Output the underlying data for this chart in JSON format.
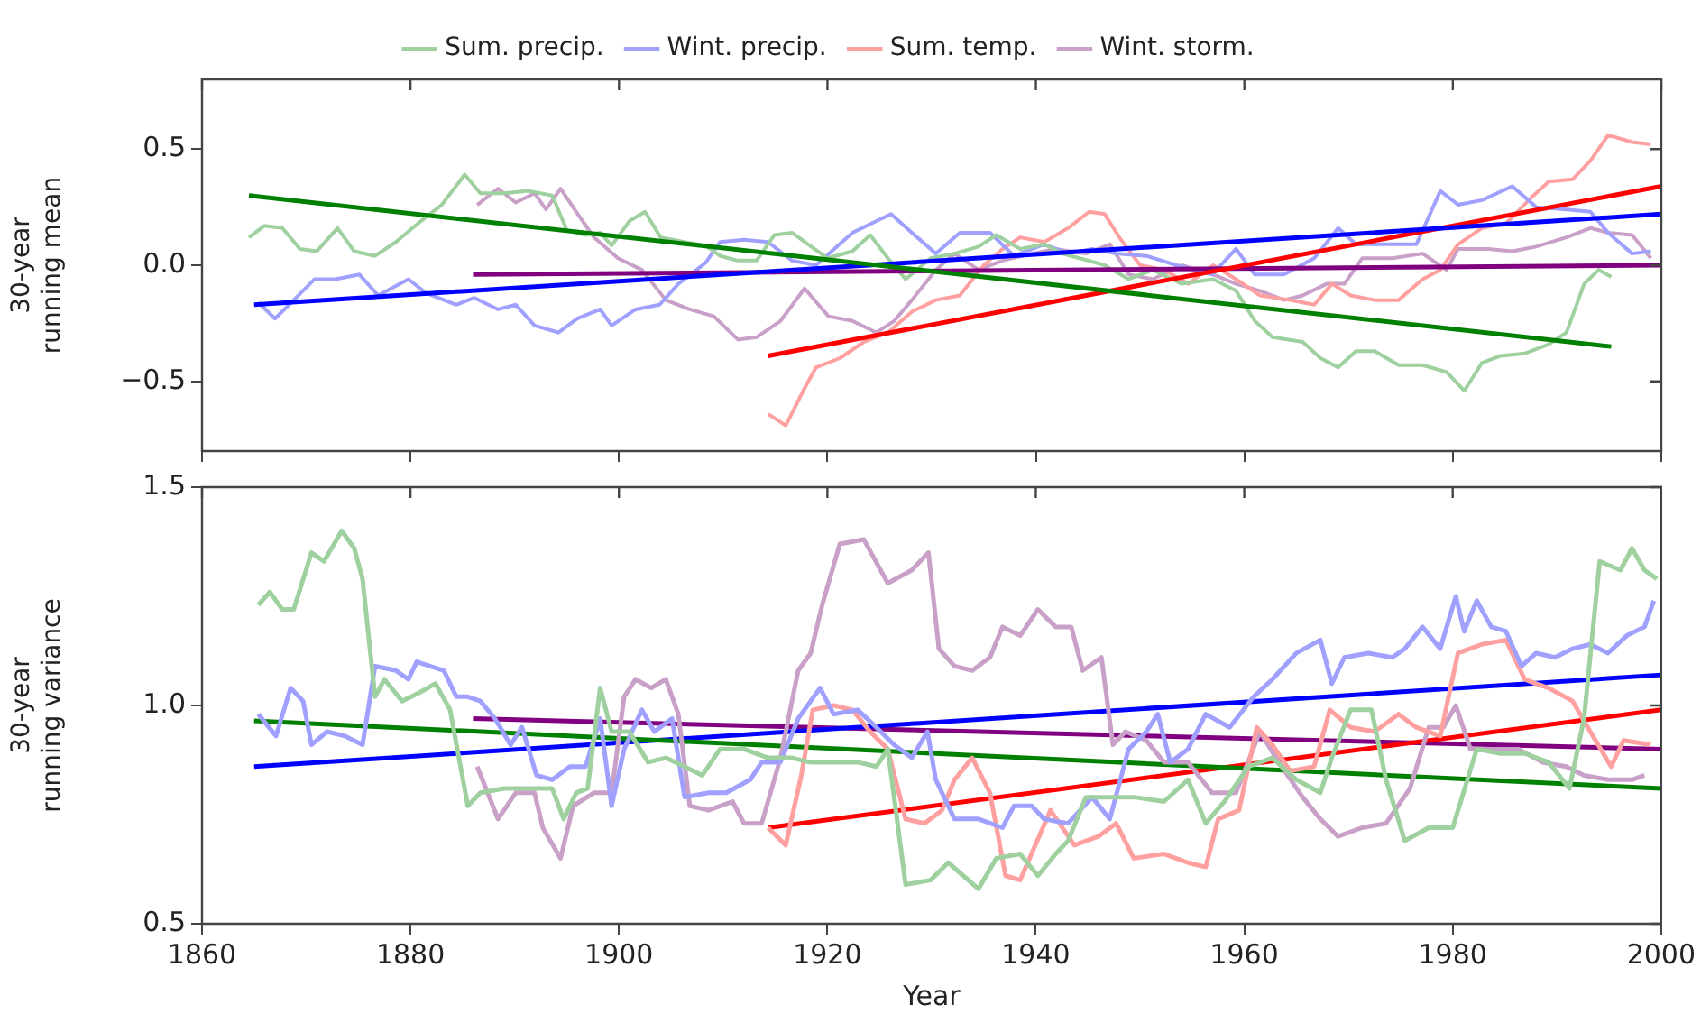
{
  "chart_data": [
    {
      "type": "line",
      "ylabel": "30-year\nrunning mean",
      "xlim": [
        1860,
        2000
      ],
      "xticks": [
        1860,
        1880,
        1900,
        1920,
        1940,
        1960,
        1980,
        2000
      ],
      "ylim": [
        -0.8,
        0.8
      ],
      "yticks": [
        {
          "value": -0.5,
          "label": "−0.5"
        },
        {
          "value": 0,
          "label": "0.0"
        },
        {
          "value": 0.5,
          "label": "0.5"
        }
      ],
      "tick_labels": "y",
      "legend": "top",
      "marker": "none",
      "series": [
        {
          "name": "Sum. precip.",
          "color": "#9fd09f",
          "x": [
            1864.5,
            1866,
            1867.7,
            1869.4,
            1871,
            1873,
            1874.6,
            1876.6,
            1878.6,
            1881,
            1883,
            1885.2,
            1886.7,
            1889,
            1891.3,
            1893.6,
            1895,
            1896.8,
            1898.2,
            1899.3,
            1901,
            1902.5,
            1904,
            1906.3,
            1908.3,
            1909.7,
            1911.4,
            1913.2,
            1914.9,
            1916.6,
            1920,
            1922.4,
            1924.1,
            1925.8,
            1927.5,
            1929.9,
            1932.2,
            1934.5,
            1936.2,
            1938.5,
            1940.8,
            1942.5,
            1944.2,
            1946.6,
            1948.9,
            1951.2,
            1954,
            1957,
            1959.2,
            1961,
            1962.7,
            1965.6,
            1967.3,
            1969,
            1970.7,
            1972.5,
            1974.8,
            1977.1,
            1979.4,
            1981.1,
            1982.8,
            1984.6,
            1986.9,
            1989.2,
            1990.9,
            1992.6,
            1994,
            1995.2
          ],
          "values": [
            0.12,
            0.17,
            0.16,
            0.07,
            0.06,
            0.16,
            0.06,
            0.04,
            0.1,
            0.19,
            0.26,
            0.39,
            0.31,
            0.31,
            0.32,
            0.3,
            0.15,
            0.13,
            0.14,
            0.085,
            0.19,
            0.23,
            0.12,
            0.1,
            0.085,
            0.04,
            0.02,
            0.02,
            0.13,
            0.14,
            0.03,
            0.06,
            0.13,
            0.03,
            -0.06,
            0.03,
            0.05,
            0.08,
            0.13,
            0.07,
            0.09,
            0.05,
            0.03,
            0,
            -0.06,
            -0.02,
            -0.08,
            -0.06,
            -0.11,
            -0.24,
            -0.31,
            -0.33,
            -0.4,
            -0.44,
            -0.37,
            -0.37,
            -0.43,
            -0.43,
            -0.46,
            -0.54,
            -0.42,
            -0.39,
            -0.38,
            -0.34,
            -0.29,
            -0.08,
            -0.02,
            -0.05
          ]
        },
        {
          "name": "Wint. precip.",
          "color": "#a0a0ff",
          "x": [
            1865.4,
            1867,
            1868.8,
            1870.8,
            1872.8,
            1875.1,
            1876.9,
            1879.8,
            1881.5,
            1884.4,
            1886.1,
            1888.4,
            1890.1,
            1891.9,
            1894.2,
            1896,
            1898.2,
            1899.3,
            1901.6,
            1903.9,
            1905.7,
            1908.3,
            1909.7,
            1912,
            1914.3,
            1916.6,
            1918.9,
            1922.4,
            1924.7,
            1926.1,
            1928.1,
            1930.4,
            1932.7,
            1935.6,
            1937.9,
            1940.8,
            1943.1,
            1945.4,
            1947.7,
            1950.6,
            1953.5,
            1956.9,
            1959.2,
            1961,
            1963.8,
            1966.7,
            1969,
            1970.7,
            1973.6,
            1976.5,
            1978.8,
            1980.5,
            1982.8,
            1985.7,
            1988,
            1990.9,
            1993.2,
            1994.9,
            1997.2,
            1999
          ],
          "values": [
            -0.16,
            -0.23,
            -0.15,
            -0.06,
            -0.06,
            -0.04,
            -0.13,
            -0.06,
            -0.12,
            -0.17,
            -0.14,
            -0.19,
            -0.17,
            -0.26,
            -0.29,
            -0.23,
            -0.19,
            -0.26,
            -0.19,
            -0.17,
            -0.08,
            0.01,
            0.1,
            0.11,
            0.1,
            0.02,
            0,
            0.14,
            0.19,
            0.22,
            0.14,
            0.05,
            0.14,
            0.14,
            0.04,
            0.09,
            0.05,
            0.07,
            0.05,
            0.04,
            0,
            -0.04,
            0.07,
            -0.04,
            -0.04,
            0.03,
            0.16,
            0.09,
            0.09,
            0.09,
            0.32,
            0.26,
            0.28,
            0.34,
            0.25,
            0.24,
            0.23,
            0.14,
            0.05,
            0.06
          ]
        },
        {
          "name": "Sum. temp.",
          "color": "#ffa0a0",
          "x": [
            1914.3,
            1916,
            1917.8,
            1918.9,
            1921.2,
            1923.5,
            1925.8,
            1928.1,
            1930.4,
            1932.7,
            1935,
            1936.8,
            1938.5,
            1940.8,
            1943.1,
            1945.1,
            1946.6,
            1948,
            1950,
            1952.3,
            1954.6,
            1957,
            1959.2,
            1961.5,
            1964.4,
            1966.7,
            1968.4,
            1970.2,
            1972.5,
            1974.8,
            1977.1,
            1978.8,
            1980.5,
            1982.8,
            1985.1,
            1987.5,
            1989.2,
            1991.5,
            1993.2,
            1994.9,
            1997.2,
            1999
          ],
          "values": [
            -0.64,
            -0.69,
            -0.53,
            -0.44,
            -0.4,
            -0.33,
            -0.29,
            -0.2,
            -0.15,
            -0.13,
            0,
            0.07,
            0.12,
            0.1,
            0.16,
            0.23,
            0.22,
            0.12,
            0,
            -0.02,
            -0.08,
            0,
            -0.06,
            -0.13,
            -0.15,
            -0.17,
            -0.08,
            -0.13,
            -0.15,
            -0.15,
            -0.06,
            -0.02,
            0.09,
            0.16,
            0.18,
            0.29,
            0.36,
            0.37,
            0.45,
            0.56,
            0.53,
            0.52
          ]
        },
        {
          "name": "Wint. storm.",
          "color": "#c8a0c8",
          "x": [
            1886.4,
            1888.4,
            1890.1,
            1891.9,
            1893,
            1894.4,
            1895.9,
            1897.6,
            1899.9,
            1902.2,
            1904.5,
            1906.8,
            1909.1,
            1911.4,
            1913.2,
            1915.5,
            1917.8,
            1920.1,
            1922.4,
            1924.7,
            1926.4,
            1928.1,
            1930.4,
            1932.2,
            1934.5,
            1936.8,
            1939.6,
            1941.9,
            1944.8,
            1947.1,
            1948.9,
            1951.2,
            1954,
            1957,
            1959.2,
            1961.5,
            1963.8,
            1965.6,
            1967.9,
            1969.6,
            1971.3,
            1974.2,
            1977.1,
            1979.4,
            1980.5,
            1983.4,
            1985.7,
            1988,
            1990.9,
            1993.2,
            1994.9,
            1997.2,
            1999
          ],
          "values": [
            0.26,
            0.33,
            0.27,
            0.31,
            0.24,
            0.33,
            0.23,
            0.12,
            0.03,
            -0.02,
            -0.15,
            -0.19,
            -0.22,
            -0.32,
            -0.31,
            -0.24,
            -0.1,
            -0.22,
            -0.24,
            -0.29,
            -0.24,
            -0.15,
            -0.02,
            0.05,
            -0.02,
            0.02,
            0.05,
            0.07,
            0.05,
            0.09,
            -0.04,
            -0.06,
            0,
            -0.04,
            -0.08,
            -0.11,
            -0.15,
            -0.13,
            -0.08,
            -0.08,
            0.03,
            0.03,
            0.05,
            -0.02,
            0.07,
            0.07,
            0.06,
            0.08,
            0.12,
            0.16,
            0.14,
            0.13,
            0.03
          ]
        },
        {
          "color": "#008000",
          "x": [
            1864.5,
            1995.2
          ],
          "values": [
            0.3,
            -0.35
          ]
        },
        {
          "color": "#0000ff",
          "x": [
            1865,
            2000
          ],
          "values": [
            -0.17,
            0.22
          ]
        },
        {
          "color": "#ff0000",
          "x": [
            1914.3,
            2000
          ],
          "values": [
            -0.39,
            0.34
          ]
        },
        {
          "color": "#800080",
          "x": [
            1886,
            2000
          ],
          "values": [
            -0.04,
            0
          ]
        }
      ]
    },
    {
      "type": "line",
      "xlabel": "Year",
      "ylabel": "30-year\nrunning variance",
      "xlim": [
        1860,
        2000
      ],
      "xticks": [
        1860,
        1880,
        1900,
        1920,
        1940,
        1960,
        1980,
        2000
      ],
      "ylim": [
        0.5,
        1.5
      ],
      "yticks": [
        {
          "value": 0.5,
          "label": "0.5"
        },
        {
          "value": 1,
          "label": "1.0"
        },
        {
          "value": 1.5,
          "label": "1.5"
        }
      ],
      "marker": "none",
      "series": [
        {
          "color": "#9fd09f",
          "x": [
            1865.4,
            1866.5,
            1867.7,
            1868.8,
            1870.5,
            1871.7,
            1873.4,
            1874.6,
            1875.4,
            1876.6,
            1877.5,
            1879.2,
            1880.9,
            1882.4,
            1883.8,
            1885.5,
            1886.7,
            1889,
            1891.3,
            1893.6,
            1894.7,
            1895.9,
            1897,
            1898.2,
            1899.3,
            1901,
            1902.8,
            1904.5,
            1906.3,
            1908,
            1909.7,
            1912,
            1914.3,
            1916.6,
            1918.3,
            1921.2,
            1922.9,
            1924.7,
            1925.8,
            1927.5,
            1929.9,
            1931.6,
            1934.5,
            1936.2,
            1938.5,
            1940.2,
            1941.9,
            1943.1,
            1944.8,
            1947.1,
            1949.4,
            1952.3,
            1954.6,
            1956.3,
            1958.1,
            1960.4,
            1962.7,
            1965,
            1967.3,
            1968.4,
            1970.2,
            1972.2,
            1973.6,
            1975.4,
            1977.7,
            1980,
            1982.3,
            1984.6,
            1986.9,
            1989.2,
            1991.2,
            1992.6,
            1994.1,
            1996.1,
            1997.2,
            1998.4,
            1999.6
          ],
          "values": [
            1.23,
            1.26,
            1.22,
            1.22,
            1.35,
            1.33,
            1.4,
            1.36,
            1.29,
            1.02,
            1.06,
            1.01,
            1.03,
            1.05,
            0.99,
            0.77,
            0.8,
            0.81,
            0.81,
            0.81,
            0.74,
            0.8,
            0.81,
            1.04,
            0.94,
            0.94,
            0.87,
            0.88,
            0.86,
            0.84,
            0.9,
            0.9,
            0.88,
            0.88,
            0.87,
            0.87,
            0.87,
            0.86,
            0.9,
            0.59,
            0.6,
            0.64,
            0.58,
            0.65,
            0.66,
            0.61,
            0.66,
            0.69,
            0.79,
            0.79,
            0.79,
            0.78,
            0.83,
            0.73,
            0.78,
            0.86,
            0.88,
            0.83,
            0.8,
            0.88,
            0.99,
            0.99,
            0.83,
            0.69,
            0.72,
            0.72,
            0.9,
            0.89,
            0.89,
            0.87,
            0.81,
            0.97,
            1.33,
            1.31,
            1.36,
            1.31,
            1.29
          ]
        },
        {
          "color": "#a0a0ff",
          "x": [
            1865.4,
            1867.1,
            1868.5,
            1869.7,
            1870.5,
            1872,
            1873.7,
            1875.4,
            1876.6,
            1878.6,
            1879.8,
            1880.6,
            1883.2,
            1884.4,
            1885.5,
            1886.7,
            1888.1,
            1889.6,
            1890.7,
            1892.1,
            1893.6,
            1895.3,
            1896.8,
            1898.2,
            1899.3,
            1900.5,
            1902.2,
            1903.4,
            1905.1,
            1906.3,
            1908.6,
            1910.3,
            1912.6,
            1913.7,
            1915.5,
            1917.2,
            1919.3,
            1920.6,
            1922.9,
            1924.7,
            1926.4,
            1928.1,
            1929.6,
            1930.4,
            1932.2,
            1934.5,
            1936.8,
            1937.9,
            1939.6,
            1940.8,
            1943.1,
            1945.4,
            1947.1,
            1948.9,
            1950.6,
            1951.7,
            1952.9,
            1954.6,
            1956.3,
            1958.6,
            1960.9,
            1962.7,
            1965,
            1967.3,
            1968.4,
            1969.6,
            1971.9,
            1974.2,
            1975.4,
            1977.1,
            1978.8,
            1980.3,
            1981.1,
            1982.3,
            1983.7,
            1985.1,
            1986.6,
            1988,
            1989.8,
            1991.5,
            1993.2,
            1994.9,
            1996.7,
            1998.4,
            1999.3
          ],
          "values": [
            0.98,
            0.93,
            1.04,
            1.01,
            0.91,
            0.94,
            0.93,
            0.91,
            1.09,
            1.08,
            1.06,
            1.1,
            1.08,
            1.02,
            1.02,
            1.01,
            0.97,
            0.91,
            0.95,
            0.84,
            0.83,
            0.86,
            0.86,
            0.97,
            0.77,
            0.9,
            0.99,
            0.94,
            0.97,
            0.79,
            0.8,
            0.8,
            0.83,
            0.87,
            0.87,
            0.97,
            1.04,
            0.98,
            0.99,
            0.95,
            0.91,
            0.88,
            0.94,
            0.83,
            0.74,
            0.74,
            0.72,
            0.77,
            0.77,
            0.74,
            0.73,
            0.79,
            0.74,
            0.9,
            0.94,
            0.98,
            0.87,
            0.9,
            0.98,
            0.95,
            1.02,
            1.06,
            1.12,
            1.15,
            1.05,
            1.11,
            1.12,
            1.11,
            1.13,
            1.18,
            1.13,
            1.25,
            1.17,
            1.24,
            1.18,
            1.17,
            1.09,
            1.12,
            1.11,
            1.13,
            1.14,
            1.12,
            1.16,
            1.18,
            1.24
          ]
        },
        {
          "color": "#ffa0a0",
          "x": [
            1914.3,
            1916,
            1917.5,
            1918.6,
            1920.6,
            1922.4,
            1924.1,
            1925.8,
            1927.5,
            1929.3,
            1931,
            1932.2,
            1933.9,
            1935.6,
            1937.1,
            1938.5,
            1941.4,
            1943.7,
            1946,
            1947.7,
            1949.4,
            1952.3,
            1954.6,
            1956.3,
            1957.5,
            1959.5,
            1961.2,
            1962.7,
            1964.4,
            1966.7,
            1968.2,
            1970.2,
            1972.5,
            1974.8,
            1976.5,
            1978.8,
            1980.5,
            1982.8,
            1985.1,
            1986.9,
            1988,
            1989.2,
            1991.5,
            1993.2,
            1995.2,
            1996.4,
            1999
          ],
          "values": [
            0.72,
            0.68,
            0.84,
            0.99,
            1,
            0.99,
            0.94,
            0.9,
            0.74,
            0.73,
            0.76,
            0.83,
            0.88,
            0.8,
            0.61,
            0.6,
            0.76,
            0.68,
            0.7,
            0.73,
            0.65,
            0.66,
            0.64,
            0.63,
            0.74,
            0.76,
            0.95,
            0.91,
            0.85,
            0.86,
            0.99,
            0.95,
            0.94,
            0.98,
            0.95,
            0.93,
            1.12,
            1.14,
            1.15,
            1.06,
            1.05,
            1.04,
            1.01,
            0.94,
            0.86,
            0.92,
            0.91
          ]
        },
        {
          "color": "#c8a0c8",
          "x": [
            1886.4,
            1888.4,
            1890.1,
            1891.9,
            1892.7,
            1894.4,
            1895.6,
            1897.6,
            1899.3,
            1900.5,
            1901.6,
            1903.1,
            1904.5,
            1905.7,
            1906.8,
            1908.6,
            1910.9,
            1912,
            1913.7,
            1915.5,
            1917.2,
            1918.4,
            1919.5,
            1921.2,
            1923.5,
            1925.8,
            1928.1,
            1929.7,
            1930.7,
            1932.2,
            1933.9,
            1935.6,
            1936.8,
            1938.5,
            1940.2,
            1941.9,
            1943.4,
            1944.5,
            1946.3,
            1947.4,
            1948.6,
            1950.6,
            1952.3,
            1954.6,
            1956.9,
            1959.2,
            1961.5,
            1963.3,
            1965.6,
            1967.3,
            1969,
            1971.3,
            1973.6,
            1975.9,
            1977.7,
            1979.1,
            1980.3,
            1981.7,
            1984,
            1986.3,
            1988.6,
            1990.9,
            1992.6,
            1994.9,
            1997.2,
            1998.4
          ],
          "values": [
            0.86,
            0.74,
            0.8,
            0.8,
            0.72,
            0.65,
            0.77,
            0.8,
            0.8,
            1.02,
            1.06,
            1.04,
            1.06,
            0.98,
            0.77,
            0.76,
            0.78,
            0.73,
            0.73,
            0.88,
            1.08,
            1.12,
            1.23,
            1.37,
            1.38,
            1.28,
            1.31,
            1.35,
            1.13,
            1.09,
            1.08,
            1.11,
            1.18,
            1.16,
            1.22,
            1.18,
            1.18,
            1.08,
            1.11,
            0.91,
            0.94,
            0.92,
            0.87,
            0.87,
            0.8,
            0.8,
            0.94,
            0.87,
            0.79,
            0.74,
            0.7,
            0.72,
            0.73,
            0.81,
            0.95,
            0.95,
            1,
            0.9,
            0.9,
            0.9,
            0.87,
            0.86,
            0.84,
            0.83,
            0.83,
            0.84
          ]
        },
        {
          "color": "#008000",
          "x": [
            1865,
            2000
          ],
          "values": [
            0.965,
            0.81
          ]
        },
        {
          "color": "#0000ff",
          "x": [
            1865,
            2000
          ],
          "values": [
            0.86,
            1.07
          ]
        },
        {
          "color": "#ff0000",
          "x": [
            1914.3,
            2000
          ],
          "values": [
            0.72,
            0.99
          ]
        },
        {
          "color": "#800080",
          "x": [
            1886,
            2000
          ],
          "values": [
            0.97,
            0.9
          ]
        }
      ]
    }
  ]
}
